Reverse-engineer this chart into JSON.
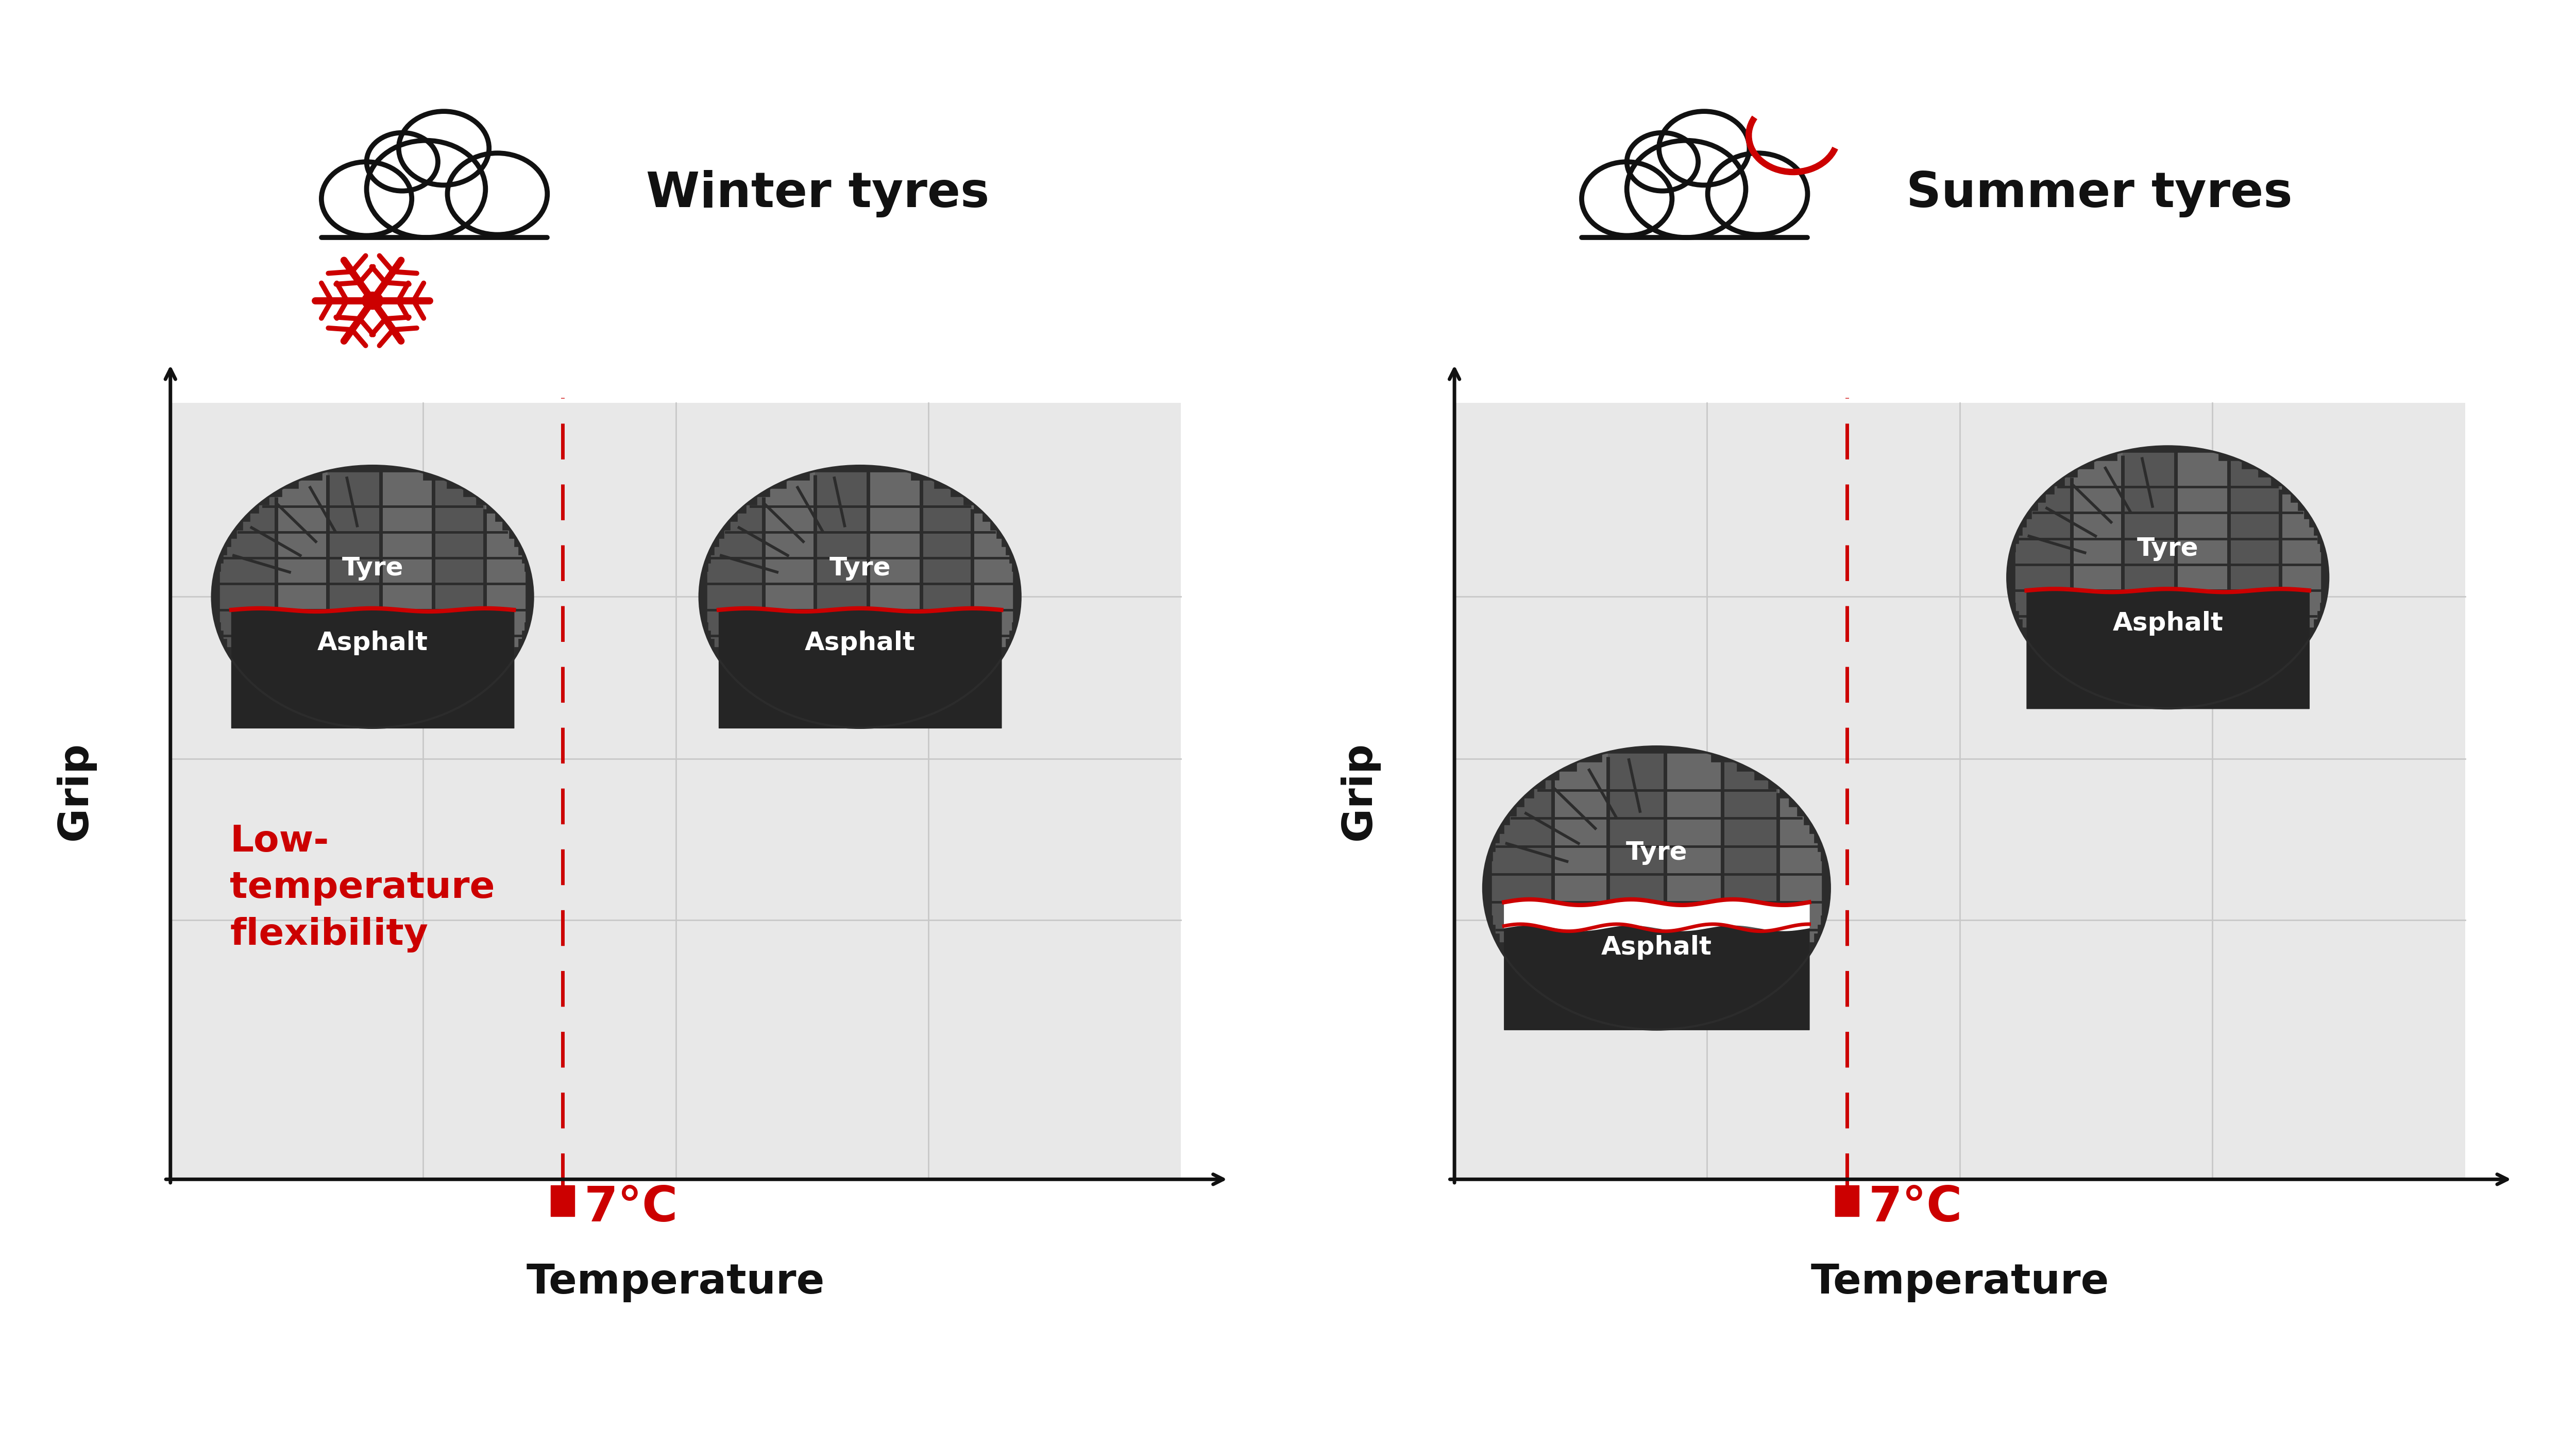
{
  "bg_color": "#ffffff",
  "panel_bg": "#e8e8e8",
  "grid_color": "#d0d0d0",
  "axis_color": "#111111",
  "red_color": "#cc0000",
  "dark_color": "#111111",
  "tyre_outer": "#2c2c2c",
  "tyre_tread_dark": "#3a3a3a",
  "tyre_tread_mid": "#555555",
  "tyre_tread_light": "#686868",
  "asphalt_color": "#252525",
  "left_title": "Winter tyres",
  "right_title": "Summer tyres",
  "xlabel": "Temperature",
  "ylabel": "Grip",
  "threshold_label": "7°C",
  "winter_annotation": "Low-\ntemperature\nflexibility",
  "tyre_label": "Tyre",
  "asphalt_label": "Asphalt",
  "title_fontsize": 68,
  "label_fontsize": 58,
  "annot_fontsize": 52,
  "temp_fontsize": 68,
  "tyre_label_fontsize": 36,
  "asphalt_label_fontsize": 36
}
